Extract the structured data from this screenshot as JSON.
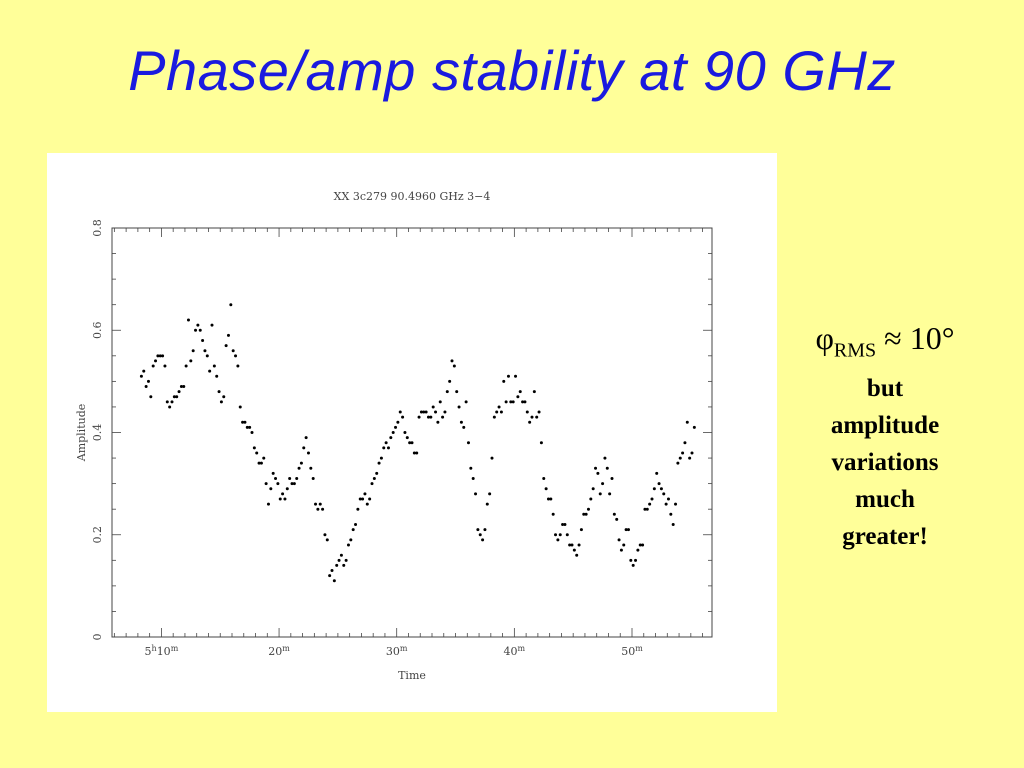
{
  "slide": {
    "title": "Phase/amp stability at 90 GHz"
  },
  "side_note": {
    "phi_symbol": "φ",
    "phi_subscript": "RMS",
    "phi_relation": " ≈ 10°",
    "text_lines": [
      "but",
      "amplitude",
      "variations",
      "much",
      "greater!"
    ]
  },
  "chart_data": {
    "type": "scatter",
    "title": "XX   3c279  90.4960 GHz   3−4",
    "xlabel": "Time",
    "ylabel": "Amplitude",
    "xlim": [
      5.8,
      56.8
    ],
    "ylim": [
      0,
      0.8
    ],
    "x_unit": "minutes after 5h00m",
    "x_ticks": [
      {
        "value": 10,
        "label": "5",
        "sup": "h",
        "label2": "10",
        "sup2": "m"
      },
      {
        "value": 20,
        "label": "20",
        "sup": "m"
      },
      {
        "value": 30,
        "label": "30",
        "sup": "m"
      },
      {
        "value": 40,
        "label": "40",
        "sup": "m"
      },
      {
        "value": 50,
        "label": "50",
        "sup": "m"
      }
    ],
    "y_ticks": [
      {
        "value": 0,
        "label": "0"
      },
      {
        "value": 0.2,
        "label": "0.2"
      },
      {
        "value": 0.4,
        "label": "0.4"
      },
      {
        "value": 0.6,
        "label": "0.6"
      },
      {
        "value": 0.8,
        "label": "0.8"
      }
    ],
    "grid": false,
    "color": "#000000",
    "series": [
      {
        "points": [
          [
            8.3,
            0.51
          ],
          [
            8.5,
            0.52
          ],
          [
            8.7,
            0.49
          ],
          [
            8.9,
            0.5
          ],
          [
            9.1,
            0.47
          ],
          [
            9.3,
            0.53
          ],
          [
            9.5,
            0.54
          ],
          [
            9.7,
            0.55
          ],
          [
            9.9,
            0.55
          ],
          [
            10.1,
            0.55
          ],
          [
            10.3,
            0.53
          ],
          [
            10.5,
            0.46
          ],
          [
            10.7,
            0.45
          ],
          [
            10.9,
            0.46
          ],
          [
            11.1,
            0.47
          ],
          [
            11.3,
            0.47
          ],
          [
            11.5,
            0.48
          ],
          [
            11.7,
            0.49
          ],
          [
            11.9,
            0.49
          ],
          [
            12.1,
            0.53
          ],
          [
            12.3,
            0.62
          ],
          [
            12.5,
            0.54
          ],
          [
            12.7,
            0.56
          ],
          [
            12.9,
            0.6
          ],
          [
            13.1,
            0.61
          ],
          [
            13.3,
            0.6
          ],
          [
            13.5,
            0.58
          ],
          [
            13.7,
            0.56
          ],
          [
            13.9,
            0.55
          ],
          [
            14.1,
            0.52
          ],
          [
            14.3,
            0.61
          ],
          [
            14.5,
            0.53
          ],
          [
            14.7,
            0.51
          ],
          [
            14.9,
            0.48
          ],
          [
            15.1,
            0.46
          ],
          [
            15.3,
            0.47
          ],
          [
            15.5,
            0.57
          ],
          [
            15.7,
            0.59
          ],
          [
            15.9,
            0.65
          ],
          [
            16.1,
            0.56
          ],
          [
            16.3,
            0.55
          ],
          [
            16.5,
            0.53
          ],
          [
            16.7,
            0.45
          ],
          [
            16.9,
            0.42
          ],
          [
            17.1,
            0.42
          ],
          [
            17.3,
            0.41
          ],
          [
            17.5,
            0.41
          ],
          [
            17.7,
            0.4
          ],
          [
            17.9,
            0.37
          ],
          [
            18.1,
            0.36
          ],
          [
            18.3,
            0.34
          ],
          [
            18.5,
            0.34
          ],
          [
            18.7,
            0.35
          ],
          [
            18.9,
            0.3
          ],
          [
            19.1,
            0.26
          ],
          [
            19.3,
            0.29
          ],
          [
            19.5,
            0.32
          ],
          [
            19.7,
            0.31
          ],
          [
            19.9,
            0.3
          ],
          [
            20.1,
            0.27
          ],
          [
            20.3,
            0.28
          ],
          [
            20.5,
            0.27
          ],
          [
            20.7,
            0.29
          ],
          [
            20.9,
            0.31
          ],
          [
            21.1,
            0.3
          ],
          [
            21.3,
            0.3
          ],
          [
            21.5,
            0.31
          ],
          [
            21.7,
            0.33
          ],
          [
            21.9,
            0.34
          ],
          [
            22.1,
            0.37
          ],
          [
            22.3,
            0.39
          ],
          [
            22.5,
            0.36
          ],
          [
            22.7,
            0.33
          ],
          [
            22.9,
            0.31
          ],
          [
            23.1,
            0.26
          ],
          [
            23.3,
            0.25
          ],
          [
            23.5,
            0.26
          ],
          [
            23.7,
            0.25
          ],
          [
            23.9,
            0.2
          ],
          [
            24.1,
            0.19
          ],
          [
            24.3,
            0.12
          ],
          [
            24.5,
            0.13
          ],
          [
            24.7,
            0.11
          ],
          [
            24.9,
            0.14
          ],
          [
            25.1,
            0.15
          ],
          [
            25.3,
            0.16
          ],
          [
            25.5,
            0.14
          ],
          [
            25.7,
            0.15
          ],
          [
            25.9,
            0.18
          ],
          [
            26.1,
            0.19
          ],
          [
            26.3,
            0.21
          ],
          [
            26.5,
            0.22
          ],
          [
            26.7,
            0.25
          ],
          [
            26.9,
            0.27
          ],
          [
            27.1,
            0.27
          ],
          [
            27.3,
            0.28
          ],
          [
            27.5,
            0.26
          ],
          [
            27.7,
            0.27
          ],
          [
            27.9,
            0.3
          ],
          [
            28.1,
            0.31
          ],
          [
            28.3,
            0.32
          ],
          [
            28.5,
            0.34
          ],
          [
            28.7,
            0.35
          ],
          [
            28.9,
            0.37
          ],
          [
            29.1,
            0.38
          ],
          [
            29.3,
            0.37
          ],
          [
            29.5,
            0.39
          ],
          [
            29.7,
            0.4
          ],
          [
            29.9,
            0.41
          ],
          [
            30.1,
            0.42
          ],
          [
            30.3,
            0.44
          ],
          [
            30.5,
            0.43
          ],
          [
            30.7,
            0.4
          ],
          [
            30.9,
            0.39
          ],
          [
            31.1,
            0.38
          ],
          [
            31.3,
            0.38
          ],
          [
            31.5,
            0.36
          ],
          [
            31.7,
            0.36
          ],
          [
            31.9,
            0.43
          ],
          [
            32.1,
            0.44
          ],
          [
            32.3,
            0.44
          ],
          [
            32.5,
            0.44
          ],
          [
            32.7,
            0.43
          ],
          [
            32.9,
            0.43
          ],
          [
            33.1,
            0.45
          ],
          [
            33.3,
            0.44
          ],
          [
            33.5,
            0.42
          ],
          [
            33.7,
            0.46
          ],
          [
            33.9,
            0.43
          ],
          [
            34.1,
            0.44
          ],
          [
            34.3,
            0.48
          ],
          [
            34.5,
            0.5
          ],
          [
            34.7,
            0.54
          ],
          [
            34.9,
            0.53
          ],
          [
            35.1,
            0.48
          ],
          [
            35.3,
            0.45
          ],
          [
            35.5,
            0.42
          ],
          [
            35.7,
            0.41
          ],
          [
            35.9,
            0.46
          ],
          [
            36.1,
            0.38
          ],
          [
            36.3,
            0.33
          ],
          [
            36.5,
            0.31
          ],
          [
            36.7,
            0.28
          ],
          [
            36.9,
            0.21
          ],
          [
            37.1,
            0.2
          ],
          [
            37.3,
            0.19
          ],
          [
            37.5,
            0.21
          ],
          [
            37.7,
            0.26
          ],
          [
            37.9,
            0.28
          ],
          [
            38.1,
            0.35
          ],
          [
            38.3,
            0.43
          ],
          [
            38.5,
            0.44
          ],
          [
            38.7,
            0.45
          ],
          [
            38.9,
            0.44
          ],
          [
            39.1,
            0.5
          ],
          [
            39.3,
            0.46
          ],
          [
            39.5,
            0.51
          ],
          [
            39.7,
            0.46
          ],
          [
            39.9,
            0.46
          ],
          [
            40.1,
            0.51
          ],
          [
            40.3,
            0.47
          ],
          [
            40.5,
            0.48
          ],
          [
            40.7,
            0.46
          ],
          [
            40.9,
            0.46
          ],
          [
            41.1,
            0.44
          ],
          [
            41.3,
            0.42
          ],
          [
            41.5,
            0.43
          ],
          [
            41.7,
            0.48
          ],
          [
            41.9,
            0.43
          ],
          [
            42.1,
            0.44
          ],
          [
            42.3,
            0.38
          ],
          [
            42.5,
            0.31
          ],
          [
            42.7,
            0.29
          ],
          [
            42.9,
            0.27
          ],
          [
            43.1,
            0.27
          ],
          [
            43.3,
            0.24
          ],
          [
            43.5,
            0.2
          ],
          [
            43.7,
            0.19
          ],
          [
            43.9,
            0.2
          ],
          [
            44.1,
            0.22
          ],
          [
            44.3,
            0.22
          ],
          [
            44.5,
            0.2
          ],
          [
            44.7,
            0.18
          ],
          [
            44.9,
            0.18
          ],
          [
            45.1,
            0.17
          ],
          [
            45.3,
            0.16
          ],
          [
            45.5,
            0.18
          ],
          [
            45.7,
            0.21
          ],
          [
            45.9,
            0.24
          ],
          [
            46.1,
            0.24
          ],
          [
            46.3,
            0.25
          ],
          [
            46.5,
            0.27
          ],
          [
            46.7,
            0.29
          ],
          [
            46.9,
            0.33
          ],
          [
            47.1,
            0.32
          ],
          [
            47.3,
            0.28
          ],
          [
            47.5,
            0.3
          ],
          [
            47.7,
            0.35
          ],
          [
            47.9,
            0.33
          ],
          [
            48.1,
            0.28
          ],
          [
            48.3,
            0.31
          ],
          [
            48.5,
            0.24
          ],
          [
            48.7,
            0.23
          ],
          [
            48.9,
            0.19
          ],
          [
            49.1,
            0.17
          ],
          [
            49.3,
            0.18
          ],
          [
            49.5,
            0.21
          ],
          [
            49.7,
            0.21
          ],
          [
            49.9,
            0.15
          ],
          [
            50.1,
            0.14
          ],
          [
            50.3,
            0.15
          ],
          [
            50.5,
            0.17
          ],
          [
            50.7,
            0.18
          ],
          [
            50.9,
            0.18
          ],
          [
            51.1,
            0.25
          ],
          [
            51.3,
            0.25
          ],
          [
            51.5,
            0.26
          ],
          [
            51.7,
            0.27
          ],
          [
            51.9,
            0.29
          ],
          [
            52.1,
            0.32
          ],
          [
            52.3,
            0.3
          ],
          [
            52.5,
            0.29
          ],
          [
            52.7,
            0.28
          ],
          [
            52.9,
            0.26
          ],
          [
            53.1,
            0.27
          ],
          [
            53.3,
            0.24
          ],
          [
            53.5,
            0.22
          ],
          [
            53.7,
            0.26
          ],
          [
            53.9,
            0.34
          ],
          [
            54.1,
            0.35
          ],
          [
            54.3,
            0.36
          ],
          [
            54.5,
            0.38
          ],
          [
            54.7,
            0.42
          ],
          [
            54.9,
            0.35
          ],
          [
            55.1,
            0.36
          ],
          [
            55.3,
            0.41
          ]
        ]
      }
    ]
  }
}
